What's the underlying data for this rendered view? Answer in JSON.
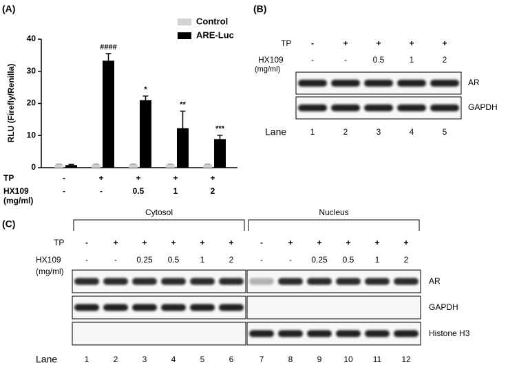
{
  "chart_data": {
    "type": "bar",
    "panel_label": "(A)",
    "y_label": "RLU (Firefly/Renilla)",
    "categories": [
      null,
      null,
      null,
      null,
      null
    ],
    "series": [
      {
        "name": "Control",
        "color": "#d3d3d3",
        "values": [
          1,
          1,
          1,
          1,
          1
        ],
        "errors": [
          0.1,
          0.1,
          0.1,
          0.1,
          0.1
        ]
      },
      {
        "name": "ARE-Luc",
        "color": "#000000",
        "values": [
          0.8,
          33.3,
          21,
          12.3,
          8.9
        ],
        "errors": [
          0.2,
          2.2,
          1.3,
          5.3,
          1.2
        ]
      }
    ],
    "annotations": [
      null,
      "####",
      "*",
      "**",
      "***"
    ],
    "ylim": [
      0,
      40
    ],
    "yticks": [
      0,
      10,
      20,
      30,
      40
    ],
    "treatments": [
      {
        "label": "TP",
        "values": [
          "-",
          "+",
          "+",
          "+",
          "+"
        ]
      },
      {
        "label": "HX109",
        "unit": "(mg/ml)",
        "values": [
          "-",
          "-",
          "0.5",
          "1",
          "2"
        ]
      }
    ]
  },
  "panel_b": {
    "label": "(B)",
    "treatments": [
      {
        "label": "TP",
        "values": [
          "-",
          "+",
          "+",
          "+",
          "+"
        ]
      },
      {
        "label": "HX109",
        "unit": "(mg/ml)",
        "values": [
          "-",
          "-",
          "0.5",
          "1",
          "2"
        ]
      }
    ],
    "blots": [
      "AR",
      "GAPDH"
    ],
    "lane_label": "Lane",
    "lanes": [
      1,
      2,
      3,
      4,
      5
    ]
  },
  "panel_c": {
    "label": "(C)",
    "fractions": [
      "Cytosol",
      "Nucleus"
    ],
    "treatments": [
      {
        "label": "TP",
        "values": [
          "-",
          "+",
          "+",
          "+",
          "+",
          "+",
          "-",
          "+",
          "+",
          "+",
          "+",
          "+"
        ]
      },
      {
        "label": "HX109",
        "unit": "(mg/ml)",
        "values": [
          "-",
          "-",
          "0.25",
          "0.5",
          "1",
          "2",
          "-",
          "-",
          "0.25",
          "0.5",
          "1",
          "2"
        ]
      }
    ],
    "blots": [
      "AR",
      "GAPDH",
      "Histone H3"
    ],
    "lane_label": "Lane",
    "lanes": [
      1,
      2,
      3,
      4,
      5,
      6,
      7,
      8,
      9,
      10,
      11,
      12
    ]
  }
}
